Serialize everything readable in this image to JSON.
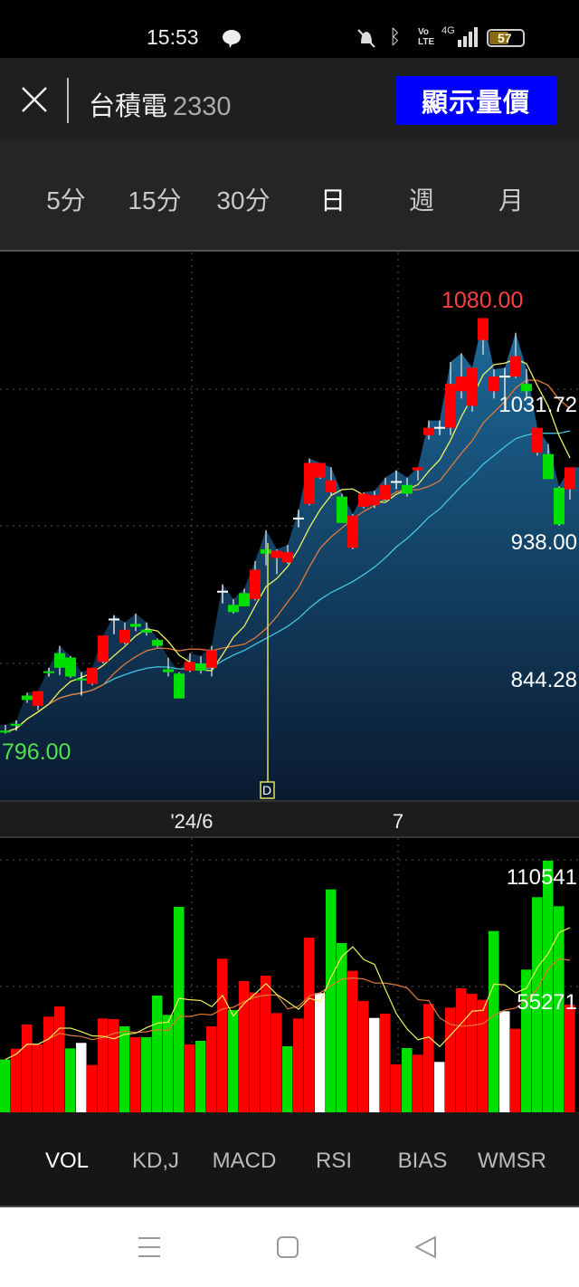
{
  "status_bar": {
    "time": "15:53",
    "battery": "57",
    "network": "4G",
    "icons": [
      "chat-bubble-icon",
      "mute-icon",
      "bluetooth-icon",
      "volte-icon",
      "signal-icon",
      "battery-icon"
    ]
  },
  "header": {
    "stock_name": "台積電",
    "stock_code": "2330",
    "show_button": "顯示量價",
    "accent": "#0000ff"
  },
  "periods": {
    "items": [
      "5分",
      "15分",
      "30分",
      "日",
      "週",
      "月"
    ],
    "active": "日"
  },
  "price_labels": {
    "high": "1080.00",
    "grid1": "1031.72",
    "grid2": "938.00",
    "grid3": "844.28",
    "low": "796.00"
  },
  "x_axis": {
    "labels": [
      "'24/6",
      "7"
    ]
  },
  "marker": {
    "label": "D"
  },
  "volume_labels": {
    "top": "110541",
    "mid": "55271"
  },
  "indicator_tabs": {
    "items": [
      "VOL",
      "KD,J",
      "MACD",
      "RSI",
      "BIAS",
      "WMSR"
    ],
    "active": "VOL"
  },
  "colors": {
    "up": "#ff0000",
    "down": "#00e000",
    "flat": "#ffffff",
    "ma5": "#f0f060",
    "ma10": "#e07a3a",
    "ma20": "#40c8e0",
    "high_label": "#ff4040",
    "low_label": "#50e050"
  },
  "chart_data": {
    "type": "candlestick",
    "ylim": [
      796,
      1080
    ],
    "gridlines": [
      1031.72,
      938.0,
      844.28
    ],
    "x_ticks": [
      "'24/6",
      "7"
    ],
    "candles": [
      [
        798,
        802,
        796,
        797
      ],
      [
        802,
        805,
        798,
        802
      ],
      [
        822,
        824,
        817,
        819
      ],
      [
        815,
        825,
        812,
        825
      ],
      [
        838,
        841,
        835,
        838
      ],
      [
        851,
        856,
        836,
        841
      ],
      [
        848,
        849,
        834,
        835
      ],
      [
        833,
        838,
        822,
        833
      ],
      [
        830,
        841,
        829,
        841
      ],
      [
        845,
        863,
        844,
        863
      ],
      [
        874,
        877,
        864,
        874
      ],
      [
        858,
        872,
        857,
        867
      ],
      [
        871,
        878,
        866,
        869
      ],
      [
        867,
        872,
        863,
        865
      ],
      [
        860,
        861,
        855,
        856
      ],
      [
        840,
        848,
        835,
        838
      ],
      [
        837,
        838,
        820,
        820
      ],
      [
        839,
        851,
        838,
        845
      ],
      [
        844,
        849,
        837,
        839
      ],
      [
        841,
        856,
        835,
        853
      ],
      [
        893,
        898,
        885,
        893
      ],
      [
        884,
        888,
        878,
        879
      ],
      [
        892,
        895,
        883,
        883
      ],
      [
        888,
        914,
        887,
        908
      ],
      [
        922,
        935,
        911,
        919
      ],
      [
        916,
        922,
        905,
        921
      ],
      [
        913,
        925,
        912,
        920
      ],
      [
        943,
        949,
        937,
        943
      ],
      [
        953,
        984,
        952,
        981
      ],
      [
        971,
        981,
        970,
        981
      ],
      [
        961,
        978,
        959,
        969
      ],
      [
        958,
        960,
        940,
        940
      ],
      [
        923,
        946,
        922,
        945
      ],
      [
        951,
        961,
        950,
        960
      ],
      [
        952,
        962,
        950,
        959
      ],
      [
        956,
        971,
        955,
        966
      ],
      [
        968,
        976,
        963,
        968
      ],
      [
        966,
        971,
        958,
        960
      ],
      [
        976,
        978,
        969,
        978
      ],
      [
        1000,
        1010,
        997,
        1005
      ],
      [
        1005,
        1010,
        1000,
        1005
      ],
      [
        1005,
        1050,
        1000,
        1035
      ],
      [
        1030,
        1056,
        1025,
        1040
      ],
      [
        1020,
        1046,
        1016,
        1046
      ],
      [
        1065,
        1080,
        1055,
        1080
      ],
      [
        1030,
        1045,
        1025,
        1040
      ],
      [
        1040,
        1046,
        1025,
        1040
      ],
      [
        1040,
        1070,
        1039,
        1054
      ],
      [
        1035,
        1045,
        1025,
        1030
      ],
      [
        988,
        1005,
        986,
        1005
      ],
      [
        987,
        994,
        970,
        970
      ],
      [
        964,
        965,
        938,
        939
      ],
      [
        963,
        978,
        956,
        978
      ]
    ],
    "volume": {
      "ylim": [
        0,
        110541
      ],
      "values": [
        23200,
        27950,
        38570,
        29820,
        42020,
        46520,
        28110,
        30500,
        20800,
        41230,
        40950,
        37770,
        33000,
        33000,
        51290,
        42820,
        90260,
        29820,
        31410,
        37770,
        67470,
        44930,
        57650,
        52600,
        60040,
        43620,
        29020,
        41230,
        76740,
        52360,
        97930,
        74350,
        62150,
        48900,
        41470,
        43340,
        21070,
        28230,
        25330,
        47590,
        22150,
        46000,
        54470,
        52090,
        49420,
        79640,
        44410,
        36700,
        62700,
        94510,
        110541,
        90530,
        47310
      ],
      "colors": [
        "down",
        "up",
        "up",
        "up",
        "up",
        "up",
        "down",
        "flat",
        "up",
        "up",
        "up",
        "down",
        "up",
        "down",
        "down",
        "down",
        "down",
        "up",
        "down",
        "up",
        "up",
        "down",
        "up",
        "up",
        "up",
        "up",
        "down",
        "up",
        "up",
        "flat",
        "down",
        "down",
        "up",
        "up",
        "flat",
        "up",
        "up",
        "down",
        "up",
        "up",
        "flat",
        "up",
        "up",
        "up",
        "up",
        "down",
        "flat",
        "up",
        "down",
        "down",
        "down",
        "down",
        "up"
      ]
    }
  }
}
